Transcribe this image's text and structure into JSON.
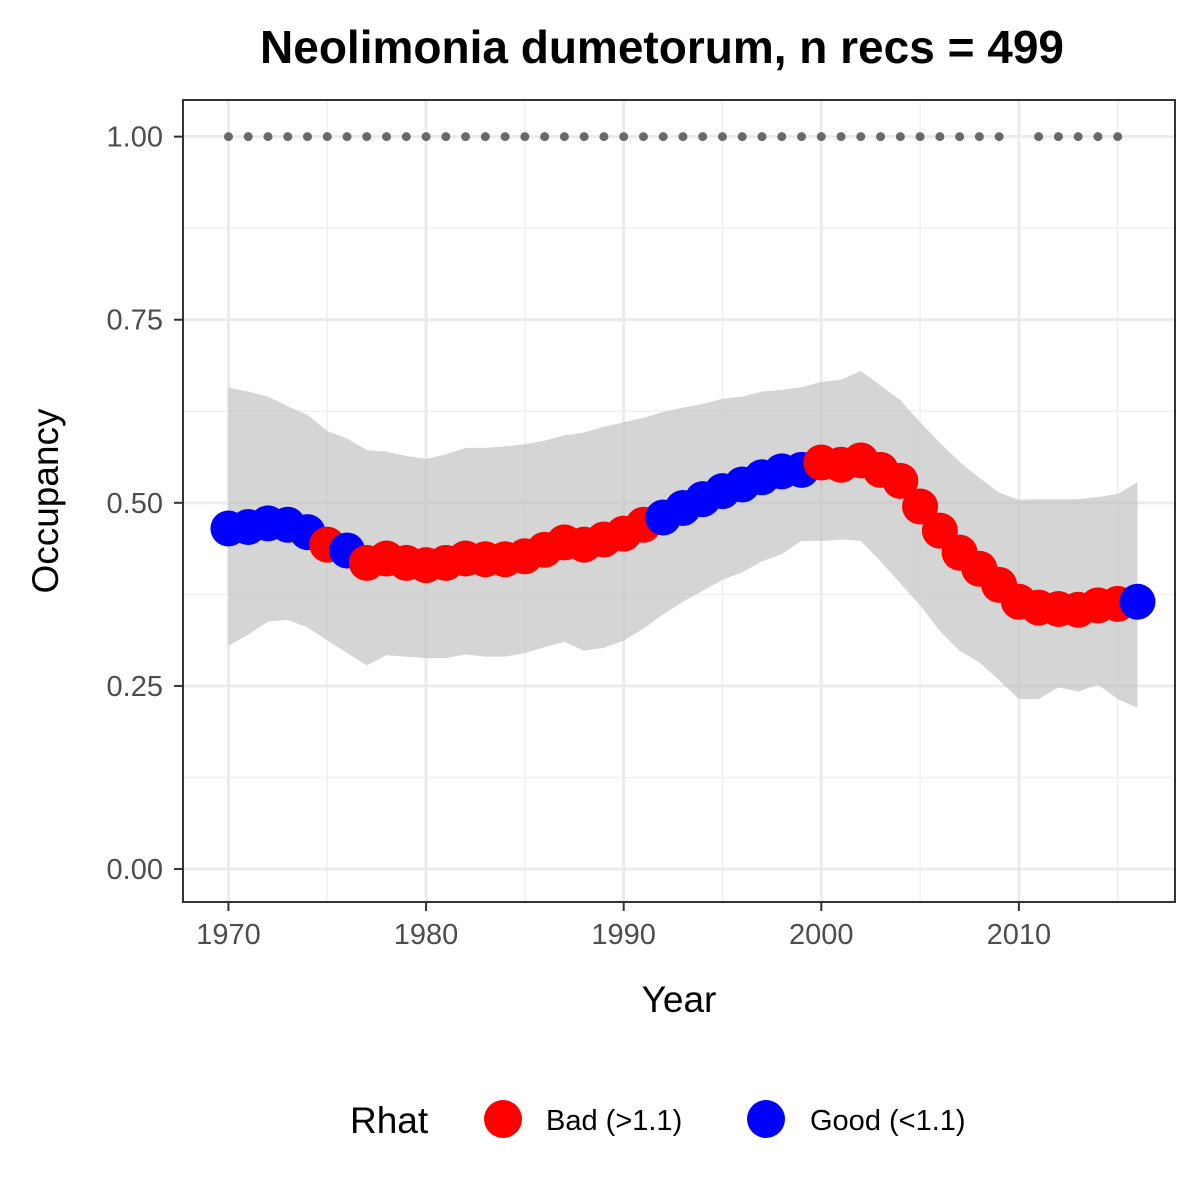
{
  "chart_data": {
    "type": "line",
    "title": "Neolimonia dumetorum, n recs = 499",
    "xlabel": "Year",
    "ylabel": "Occupancy",
    "xlim": [
      1967.7,
      2017.9
    ],
    "ylim": [
      -0.045,
      1.05
    ],
    "x_ticks": [
      1970,
      1980,
      1990,
      2000,
      2010
    ],
    "x_tick_labels": [
      "1970",
      "1980",
      "1990",
      "2000",
      "2010"
    ],
    "y_ticks": [
      0,
      0.25,
      0.5,
      0.75,
      1.0
    ],
    "y_tick_labels": [
      "0.00",
      "0.25",
      "0.50",
      "0.75",
      "1.00"
    ],
    "grid": true,
    "legend": {
      "title": "Rhat",
      "position": "bottom",
      "entries": [
        {
          "key": "bad",
          "label": "Bad (>1.1)",
          "color": "#ff0000"
        },
        {
          "key": "good",
          "label": "Good (<1.1)",
          "color": "#0000ff"
        }
      ]
    },
    "ribbon_color": "#bfbfbf",
    "record_marker_color": "#696969",
    "years": [
      1970,
      1971,
      1972,
      1973,
      1974,
      1975,
      1976,
      1977,
      1978,
      1979,
      1980,
      1981,
      1982,
      1983,
      1984,
      1985,
      1986,
      1987,
      1988,
      1989,
      1990,
      1991,
      1992,
      1993,
      1994,
      1995,
      1996,
      1997,
      1998,
      1999,
      2000,
      2001,
      2002,
      2003,
      2004,
      2005,
      2006,
      2007,
      2008,
      2009,
      2010,
      2011,
      2012,
      2013,
      2014,
      2015,
      2016
    ],
    "occupancy": [
      0.465,
      0.467,
      0.472,
      0.47,
      0.46,
      0.443,
      0.435,
      0.418,
      0.424,
      0.418,
      0.415,
      0.418,
      0.424,
      0.423,
      0.423,
      0.427,
      0.436,
      0.446,
      0.443,
      0.45,
      0.458,
      0.47,
      0.48,
      0.493,
      0.505,
      0.516,
      0.525,
      0.535,
      0.543,
      0.545,
      0.555,
      0.552,
      0.558,
      0.545,
      0.53,
      0.495,
      0.462,
      0.432,
      0.41,
      0.388,
      0.365,
      0.357,
      0.355,
      0.354,
      0.36,
      0.362,
      0.365
    ],
    "lower": [
      0.305,
      0.32,
      0.338,
      0.34,
      0.33,
      0.312,
      0.295,
      0.278,
      0.292,
      0.29,
      0.288,
      0.288,
      0.293,
      0.29,
      0.29,
      0.295,
      0.303,
      0.31,
      0.298,
      0.302,
      0.312,
      0.328,
      0.348,
      0.365,
      0.38,
      0.395,
      0.405,
      0.42,
      0.43,
      0.448,
      0.448,
      0.45,
      0.448,
      0.42,
      0.39,
      0.36,
      0.325,
      0.298,
      0.282,
      0.258,
      0.232,
      0.232,
      0.248,
      0.242,
      0.252,
      0.232,
      0.22
    ],
    "upper": [
      0.657,
      0.652,
      0.645,
      0.632,
      0.62,
      0.598,
      0.588,
      0.572,
      0.57,
      0.564,
      0.56,
      0.566,
      0.575,
      0.575,
      0.577,
      0.58,
      0.585,
      0.592,
      0.596,
      0.604,
      0.61,
      0.616,
      0.624,
      0.63,
      0.635,
      0.642,
      0.645,
      0.652,
      0.654,
      0.658,
      0.665,
      0.668,
      0.68,
      0.66,
      0.64,
      0.61,
      0.582,
      0.556,
      0.534,
      0.514,
      0.504,
      0.505,
      0.505,
      0.505,
      0.508,
      0.512,
      0.528
    ],
    "rhat": [
      "good",
      "good",
      "good",
      "good",
      "good",
      "bad",
      "good",
      "bad",
      "bad",
      "bad",
      "bad",
      "bad",
      "bad",
      "bad",
      "bad",
      "bad",
      "bad",
      "bad",
      "bad",
      "bad",
      "bad",
      "bad",
      "good",
      "good",
      "good",
      "good",
      "good",
      "good",
      "good",
      "good",
      "bad",
      "bad",
      "bad",
      "bad",
      "bad",
      "bad",
      "bad",
      "bad",
      "bad",
      "bad",
      "bad",
      "bad",
      "bad",
      "bad",
      "bad",
      "bad",
      "good"
    ],
    "record_years": [
      1970,
      1971,
      1972,
      1973,
      1974,
      1975,
      1976,
      1977,
      1978,
      1979,
      1980,
      1981,
      1982,
      1983,
      1984,
      1985,
      1986,
      1987,
      1988,
      1989,
      1990,
      1991,
      1992,
      1993,
      1994,
      1995,
      1996,
      1997,
      1998,
      1999,
      2000,
      2001,
      2002,
      2003,
      2004,
      2005,
      2006,
      2007,
      2008,
      2009,
      2011,
      2012,
      2013,
      2014,
      2015
    ],
    "record_value": 1.0
  }
}
